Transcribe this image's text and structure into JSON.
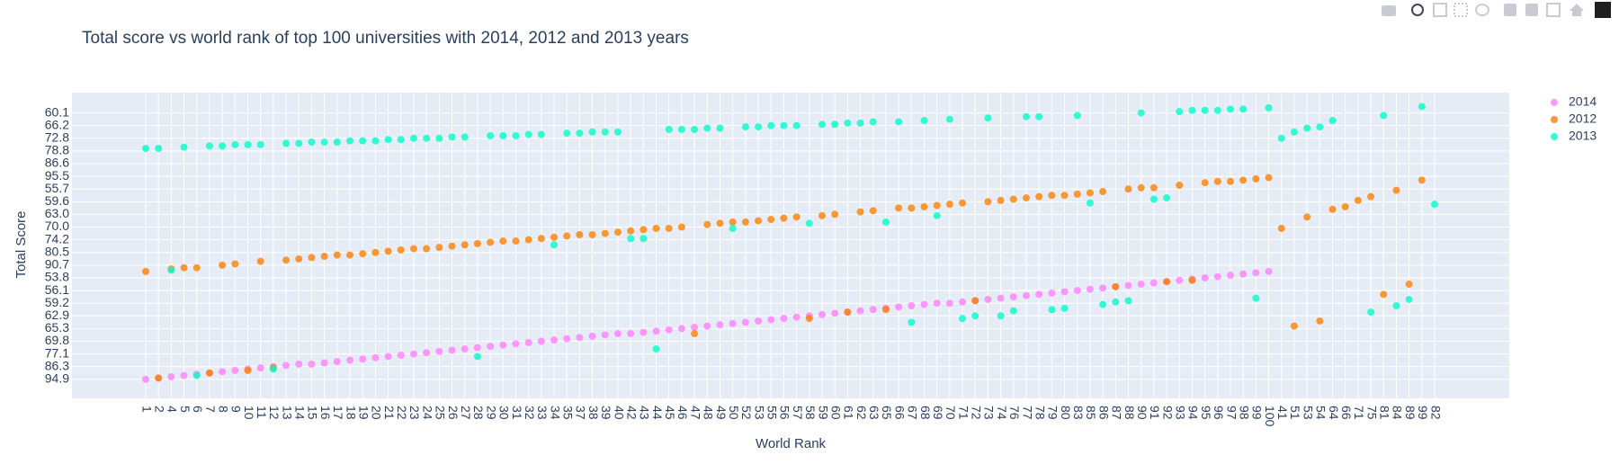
{
  "chart_data": {
    "type": "scatter",
    "title": "Total score vs world rank of top 100 universities with 2014, 2012 and 2013 years",
    "x_label": "World Rank",
    "y_label": "Total Score",
    "categories": [
      "1",
      "2",
      "4",
      "5",
      "6",
      "7",
      "8",
      "9",
      "10",
      "11",
      "12",
      "13",
      "14",
      "15",
      "16",
      "17",
      "18",
      "19",
      "20",
      "21",
      "22",
      "23",
      "24",
      "25",
      "26",
      "27",
      "28",
      "29",
      "30",
      "31",
      "32",
      "33",
      "34",
      "35",
      "37",
      "38",
      "39",
      "40",
      "42",
      "43",
      "44",
      "45",
      "46",
      "47",
      "48",
      "49",
      "50",
      "52",
      "53",
      "55",
      "56",
      "57",
      "58",
      "59",
      "60",
      "61",
      "62",
      "63",
      "65",
      "66",
      "67",
      "68",
      "69",
      "70",
      "71",
      "72",
      "73",
      "74",
      "76",
      "77",
      "78",
      "79",
      "80",
      "83",
      "85",
      "86",
      "87",
      "88",
      "90",
      "91",
      "92",
      "93",
      "94",
      "95",
      "96",
      "97",
      "98",
      "99",
      "100",
      "41",
      "51",
      "53",
      "54",
      "64",
      "66",
      "71",
      "75",
      "81",
      "84",
      "89",
      "99",
      "82"
    ],
    "ylim": [
      -1.5,
      22.6
    ],
    "yticks": [
      {
        "value": 0,
        "label": "94.9"
      },
      {
        "value": 1,
        "label": "86.3"
      },
      {
        "value": 2,
        "label": "77.1"
      },
      {
        "value": 3,
        "label": "69.8"
      },
      {
        "value": 4,
        "label": "65.3"
      },
      {
        "value": 5,
        "label": "62.9"
      },
      {
        "value": 6,
        "label": "59.2"
      },
      {
        "value": 7,
        "label": "56.1"
      },
      {
        "value": 8,
        "label": "53.8"
      },
      {
        "value": 9,
        "label": "90.7"
      },
      {
        "value": 10,
        "label": "80.5"
      },
      {
        "value": 11,
        "label": "74.2"
      },
      {
        "value": 12,
        "label": "70.0"
      },
      {
        "value": 13,
        "label": "63.0"
      },
      {
        "value": 14,
        "label": "59.6"
      },
      {
        "value": 15,
        "label": "55.7"
      },
      {
        "value": 16,
        "label": "95.5"
      },
      {
        "value": 17,
        "label": "86.6"
      },
      {
        "value": 18,
        "label": "78.8"
      },
      {
        "value": 19,
        "label": "72.8"
      },
      {
        "value": 20,
        "label": "66.2"
      },
      {
        "value": 21,
        "label": "60.1"
      }
    ],
    "grid": true,
    "legend": "right",
    "series": [
      {
        "name": "2014",
        "color": "rgba(255, 128, 255, 0.8)",
        "values": [
          0.0,
          0.1,
          0.2,
          0.3,
          0.4,
          0.5,
          0.6,
          0.7,
          0.8,
          0.9,
          1.0,
          1.1,
          1.2,
          1.2,
          1.3,
          1.4,
          1.5,
          1.6,
          1.7,
          1.8,
          1.9,
          2.0,
          2.1,
          2.2,
          2.3,
          2.4,
          2.5,
          2.6,
          2.7,
          2.8,
          2.9,
          3.0,
          3.1,
          3.2,
          3.3,
          3.4,
          3.5,
          3.6,
          3.6,
          3.7,
          3.8,
          3.9,
          4.0,
          4.1,
          4.2,
          4.3,
          4.4,
          4.5,
          4.6,
          4.7,
          4.8,
          4.9,
          5.0,
          5.1,
          5.2,
          5.3,
          5.4,
          5.5,
          5.6,
          5.7,
          5.8,
          5.9,
          6.0,
          6.0,
          6.1,
          6.2,
          6.3,
          6.4,
          6.5,
          6.6,
          6.7,
          6.8,
          6.9,
          7.0,
          7.1,
          7.2,
          7.3,
          7.4,
          7.5,
          7.6,
          7.7,
          7.8,
          7.9,
          8.0,
          8.1,
          8.2,
          8.3,
          8.4,
          8.5,
          null,
          null,
          null,
          null,
          null,
          null,
          null,
          null,
          null,
          null,
          null,
          null,
          null
        ]
      },
      {
        "name": "2012",
        "color": "rgba(255, 128, 2, 0.8)",
        "values": [
          8.5,
          0.1,
          8.7,
          8.8,
          8.8,
          0.5,
          9.0,
          9.1,
          0.7,
          9.3,
          0.9,
          9.4,
          9.5,
          9.6,
          9.7,
          9.8,
          9.8,
          9.9,
          10.0,
          10.1,
          10.2,
          10.3,
          10.3,
          10.4,
          10.5,
          10.6,
          10.7,
          10.8,
          10.9,
          10.9,
          11.0,
          11.1,
          11.2,
          11.3,
          11.4,
          11.4,
          11.5,
          11.6,
          11.7,
          11.8,
          11.9,
          11.9,
          12.0,
          3.6,
          12.2,
          12.3,
          12.4,
          12.4,
          12.5,
          12.6,
          12.7,
          12.8,
          4.8,
          12.9,
          13.0,
          5.3,
          13.2,
          13.3,
          5.5,
          13.5,
          13.5,
          13.6,
          13.7,
          13.8,
          13.9,
          6.2,
          14.0,
          14.1,
          14.2,
          14.3,
          14.4,
          14.5,
          14.5,
          14.6,
          14.7,
          14.8,
          7.3,
          15.0,
          15.1,
          15.1,
          7.7,
          15.3,
          7.8,
          15.5,
          15.6,
          15.6,
          15.7,
          15.8,
          15.9,
          11.9,
          4.2,
          12.8,
          4.6,
          13.4,
          13.6,
          14.1,
          14.4,
          6.7,
          14.9,
          7.5,
          15.7,
          null
        ]
      },
      {
        "name": "2013",
        "color": "rgba(0, 255, 200, 0.8)",
        "values": [
          18.2,
          18.2,
          8.6,
          18.3,
          0.3,
          18.4,
          18.4,
          18.5,
          18.5,
          18.5,
          0.8,
          18.6,
          18.6,
          18.7,
          18.7,
          18.7,
          18.8,
          18.8,
          18.8,
          18.9,
          18.9,
          19.0,
          19.0,
          19.0,
          19.1,
          19.1,
          1.8,
          19.2,
          19.2,
          19.2,
          19.3,
          19.3,
          10.6,
          19.4,
          19.4,
          19.5,
          19.5,
          19.5,
          11.1,
          11.1,
          2.4,
          19.7,
          19.7,
          19.7,
          19.8,
          19.8,
          11.9,
          19.9,
          19.9,
          20.0,
          20.0,
          20.0,
          12.3,
          20.1,
          20.1,
          20.2,
          20.2,
          20.3,
          12.4,
          20.3,
          4.5,
          20.4,
          12.9,
          20.5,
          4.8,
          5.0,
          20.6,
          5.0,
          5.4,
          20.7,
          20.7,
          5.5,
          5.6,
          20.8,
          13.9,
          5.9,
          6.1,
          6.2,
          21.0,
          14.2,
          14.3,
          21.1,
          21.2,
          21.2,
          21.2,
          21.3,
          21.3,
          6.4,
          21.4,
          19.0,
          19.5,
          19.8,
          19.9,
          20.4,
          null,
          null,
          5.3,
          20.8,
          5.8,
          6.3,
          21.5,
          13.8
        ]
      }
    ]
  }
}
